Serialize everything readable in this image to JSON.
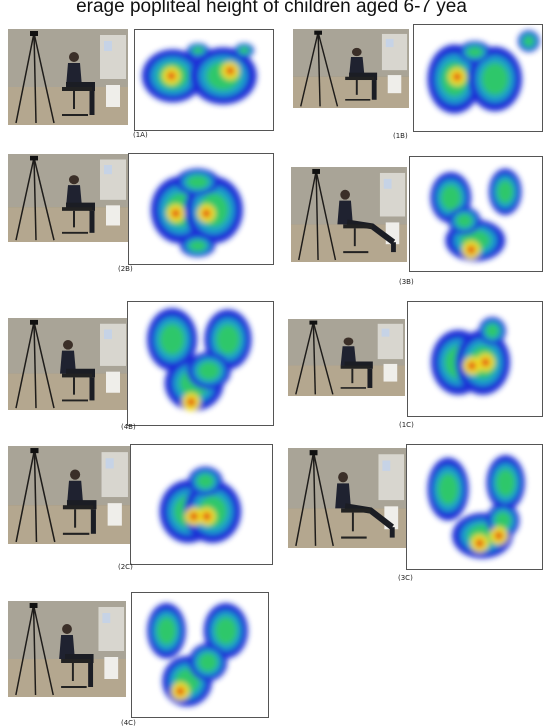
{
  "header": {
    "caption_fragment": "erage popliteal height of children aged 6-7 yea"
  },
  "panels": [
    {
      "id": "1A",
      "label": "(1A)",
      "posture": "upright"
    },
    {
      "id": "1B",
      "label": "(1B)",
      "posture": "upright"
    },
    {
      "id": "2B",
      "label": "(2B)",
      "posture": "upright"
    },
    {
      "id": "3B",
      "label": "(3B)",
      "posture": "reclined"
    },
    {
      "id": "4B",
      "label": "(4B)",
      "posture": "leaning"
    },
    {
      "id": "1C",
      "label": "(1C)",
      "posture": "slouched"
    },
    {
      "id": "2C",
      "label": "(2C)",
      "posture": "upright"
    },
    {
      "id": "3C",
      "label": "(3C)",
      "posture": "reclined"
    },
    {
      "id": "4C",
      "label": "(4C)",
      "posture": "leaning"
    }
  ],
  "colors": {
    "heat_low": "#1b2fd6",
    "heat_mid": "#2fc76a",
    "heat_high": "#f0e020",
    "heat_peak": "#e01515"
  }
}
